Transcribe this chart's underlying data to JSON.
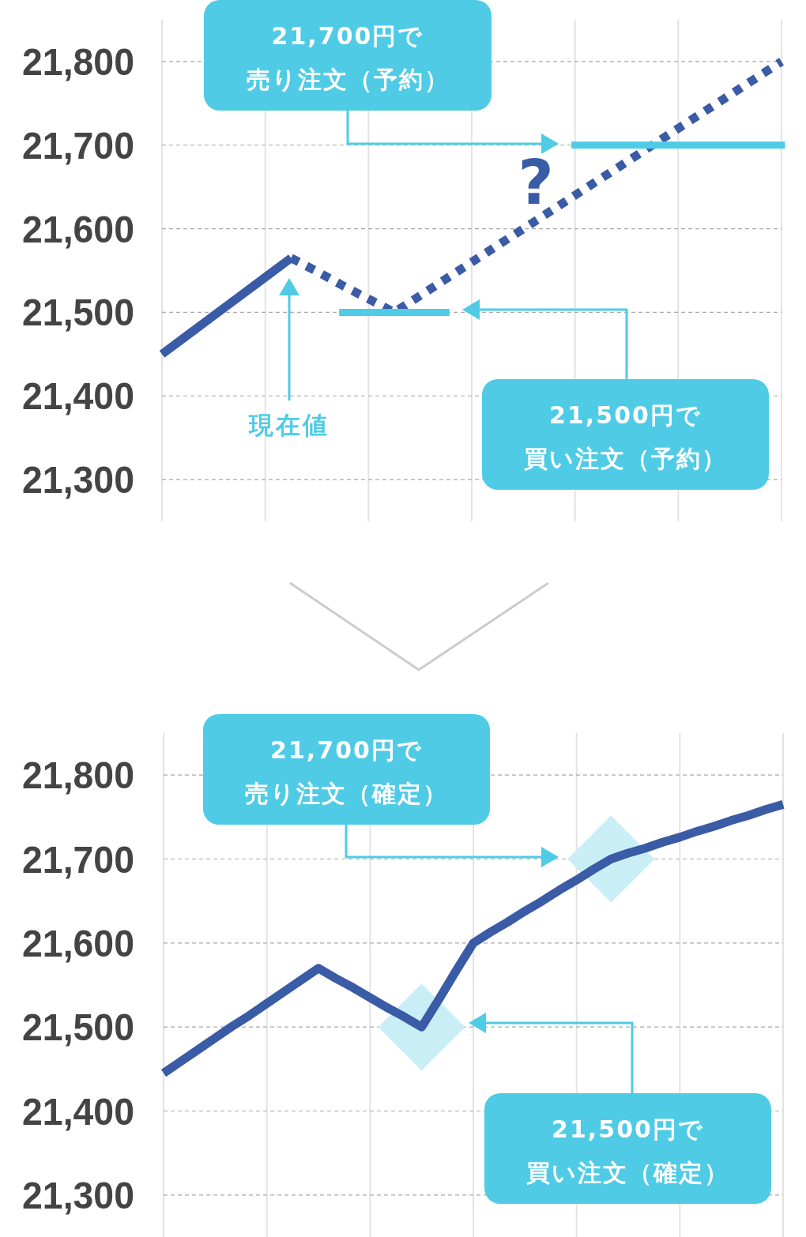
{
  "chart_data": [
    {
      "type": "line",
      "ylim": [
        21250,
        21850
      ],
      "grid": true,
      "categories": [
        null,
        null,
        null,
        null,
        null,
        null,
        null,
        null,
        null,
        null,
        null,
        null,
        null,
        null,
        null,
        null,
        null,
        null,
        null,
        null,
        null,
        null,
        null,
        null,
        null
      ],
      "yticks": [
        {
          "value": 21300,
          "label": "21,300"
        },
        {
          "value": 21400,
          "label": "21,400"
        },
        {
          "value": 21500,
          "label": "21,500"
        },
        {
          "value": 21600,
          "label": "21,600"
        },
        {
          "value": 21700,
          "label": "21,700"
        },
        {
          "value": 21800,
          "label": "21,800"
        }
      ],
      "series": [
        {
          "color": "#3a5ba5",
          "values": [
            21450,
            21473,
            21496,
            21519,
            21542,
            21565,
            null,
            null,
            null,
            null,
            null,
            null,
            null,
            null,
            null,
            null,
            null,
            null,
            null,
            null,
            null,
            null,
            null,
            null,
            null
          ]
        },
        {
          "color": "#3a5ba5",
          "line_style": "dotted",
          "values": [
            null,
            null,
            null,
            null,
            null,
            21565,
            21549,
            21532,
            21516,
            21500,
            21520,
            21540,
            21560,
            21580,
            21600,
            21620,
            21640,
            21660,
            21680,
            21700,
            21720,
            21740,
            21760,
            21780,
            21800
          ]
        },
        {
          "color": "#4fcbe6",
          "values": [
            null,
            null,
            null,
            null,
            null,
            null,
            null,
            21500,
            21500,
            21500,
            21500,
            21500,
            null,
            null,
            null,
            null,
            21700,
            21700,
            21700,
            21700,
            21700,
            21700,
            21700,
            21700,
            21700
          ]
        }
      ],
      "annotations": [
        "21,700円で売り注文（予約）",
        "21,500円で買い注文（予約）",
        "現在値",
        "?"
      ]
    },
    {
      "type": "line",
      "ylim": [
        21250,
        21850
      ],
      "grid": true,
      "categories": [
        null,
        null,
        null,
        null,
        null,
        null,
        null,
        null,
        null,
        null,
        null,
        null,
        null,
        null,
        null,
        null,
        null,
        null,
        null,
        null,
        null,
        null,
        null,
        null,
        null,
        null,
        null,
        null,
        null,
        null,
        null,
        null,
        null,
        null,
        null,
        null,
        null
      ],
      "yticks": [
        {
          "value": 21300,
          "label": "21,300"
        },
        {
          "value": 21400,
          "label": "21,400"
        },
        {
          "value": 21500,
          "label": "21,500"
        },
        {
          "value": 21600,
          "label": "21,600"
        },
        {
          "value": 21700,
          "label": "21,700"
        },
        {
          "value": 21800,
          "label": "21,800"
        }
      ],
      "series": [
        {
          "type": "scatter",
          "marker": "diamond",
          "color": "#c9eef6",
          "values": [
            null,
            null,
            null,
            null,
            null,
            null,
            null,
            null,
            null,
            null,
            null,
            null,
            null,
            null,
            null,
            21500,
            null,
            null,
            null,
            null,
            null,
            null,
            null,
            null,
            null,
            null,
            21700,
            null,
            null,
            null,
            null,
            null,
            null,
            null,
            null,
            null,
            null
          ]
        },
        {
          "color": "#3a5ba5",
          "values": [
            21445,
            21459,
            21473,
            21487,
            21501,
            21514,
            21528,
            21542,
            21556,
            21570,
            21558,
            21547,
            21535,
            21523,
            21512,
            21500,
            21533,
            21567,
            21600,
            21613,
            21625,
            21638,
            21650,
            21663,
            21675,
            21688,
            21700,
            21707,
            21713,
            21720,
            21726,
            21733,
            21739,
            21746,
            21752,
            21759,
            21765
          ]
        }
      ],
      "annotations": [
        "21,700円で売り注文（確定）",
        "21,500円で買い注文（確定）"
      ]
    }
  ]
}
